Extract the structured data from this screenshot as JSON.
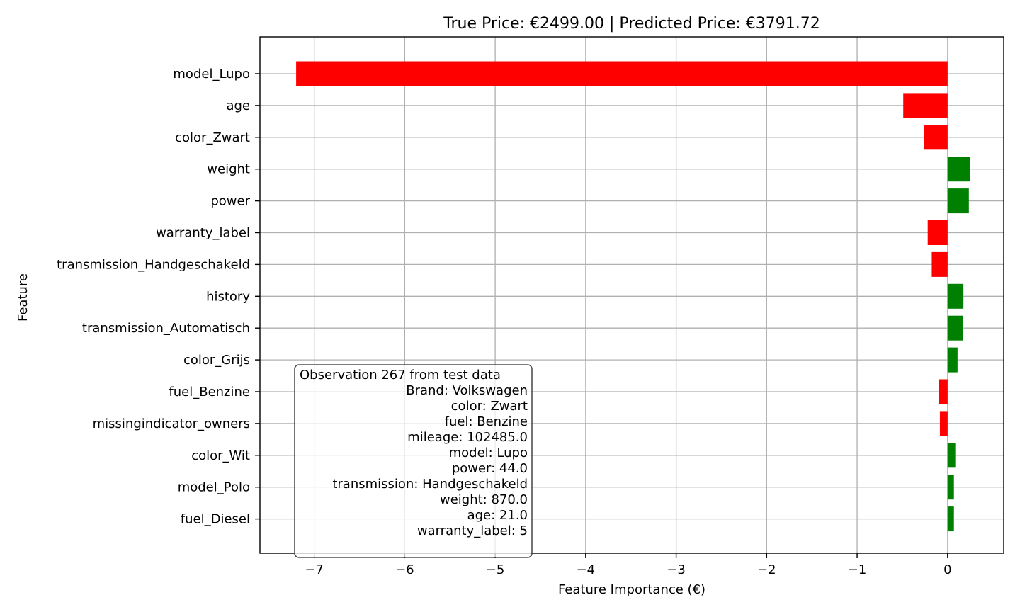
{
  "chart_data": {
    "type": "bar",
    "orientation": "horizontal",
    "title": "True Price: €2499.00 | Predicted Price: €3791.72",
    "xlabel": "Feature Importance (€)",
    "ylabel": "Feature",
    "xlim": [
      -7.6,
      0.62
    ],
    "xticks": [
      -7,
      -6,
      -5,
      -4,
      -3,
      -2,
      -1,
      0
    ],
    "xtick_labels": [
      "−7",
      "−6",
      "−5",
      "−4",
      "−3",
      "−2",
      "−1",
      "0"
    ],
    "grid": true,
    "colors": {
      "positive": "#008000",
      "negative": "#ff0000"
    },
    "categories": [
      "model_Lupo",
      "age",
      "color_Zwart",
      "weight",
      "power",
      "warranty_label",
      "transmission_Handgeschakeld",
      "history",
      "transmission_Automatisch",
      "color_Grijs",
      "fuel_Benzine",
      "missingindicator_owners",
      "color_Wit",
      "model_Polo",
      "fuel_Diesel"
    ],
    "values": [
      -7.2,
      -0.49,
      -0.26,
      0.25,
      0.235,
      -0.22,
      -0.175,
      0.175,
      0.17,
      0.11,
      -0.095,
      -0.085,
      0.085,
      0.07,
      0.07
    ],
    "annotation": {
      "lines": [
        "Observation 267 from test data ",
        "Brand: Volkswagen",
        "color: Zwart",
        "fuel: Benzine",
        "mileage: 102485.0",
        "model: Lupo",
        "power: 44.0",
        "transmission: Handgeschakeld",
        "weight: 870.0",
        "age: 21.0",
        "warranty_label: 5"
      ]
    }
  }
}
